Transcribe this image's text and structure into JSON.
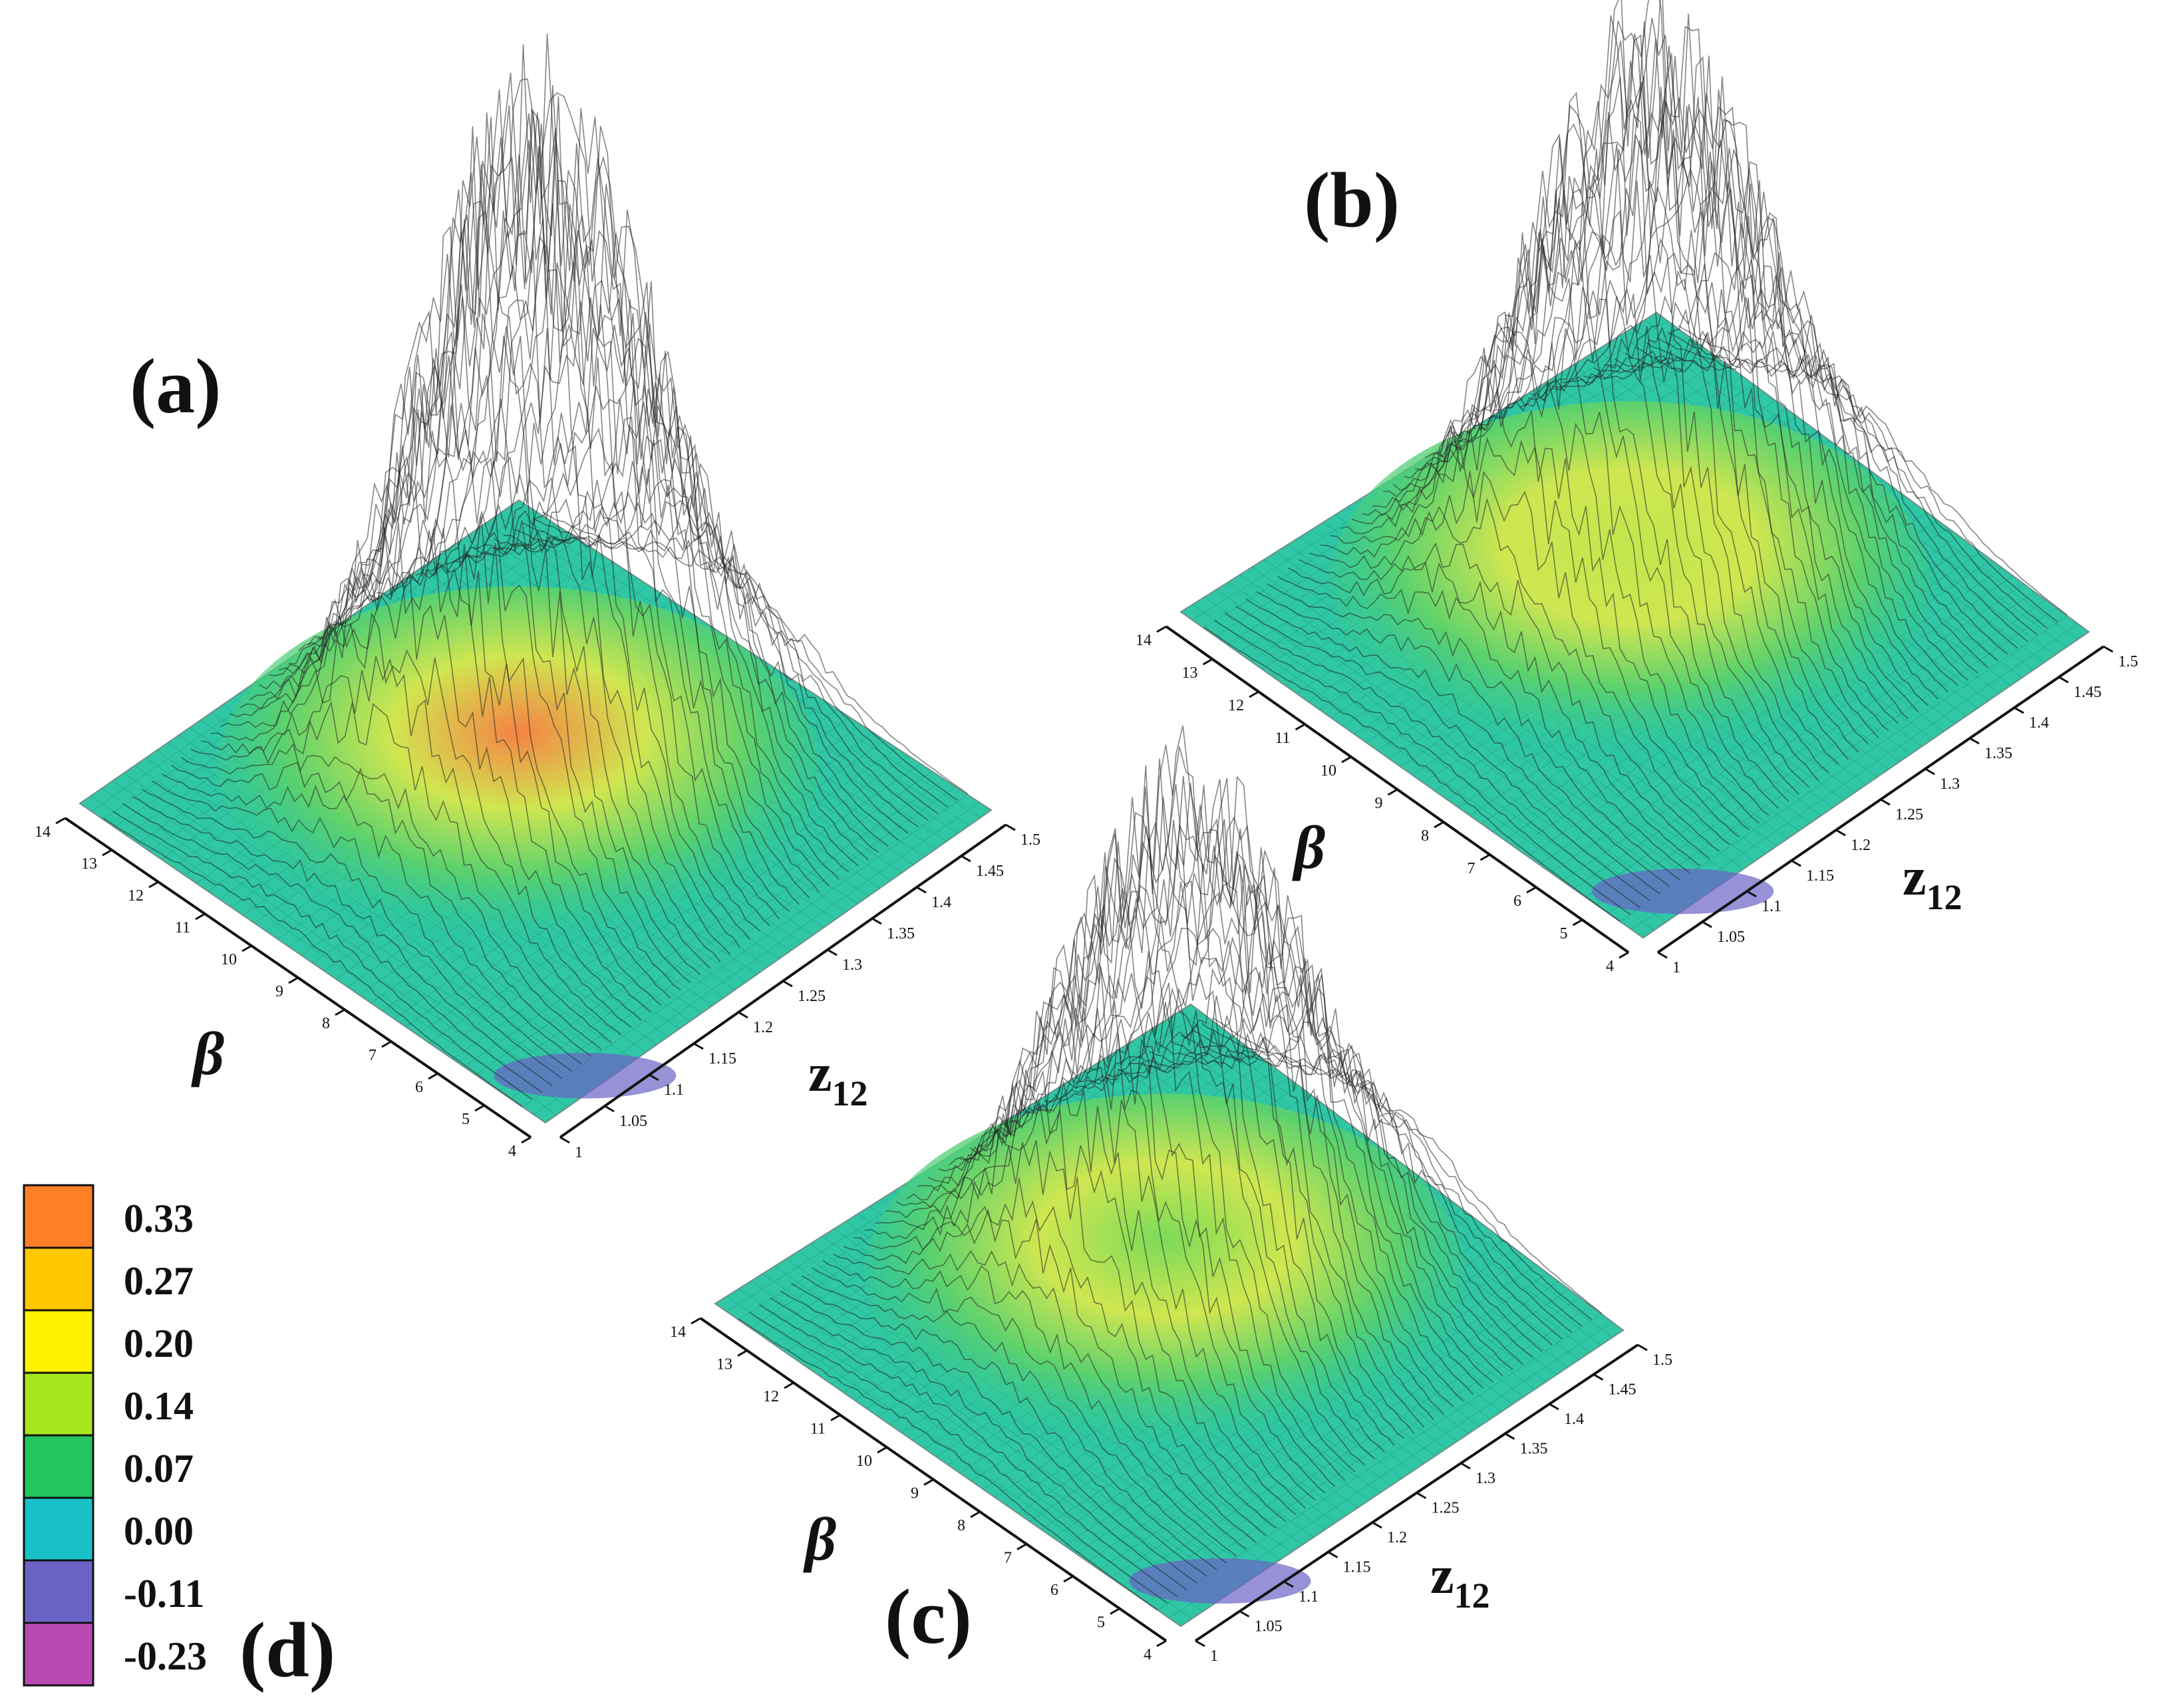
{
  "chart_data": [
    {
      "type": "surface",
      "panel_label": "(a)",
      "x_label": "β",
      "y_label": "z",
      "y_label_subscript": "12",
      "beta_ticks": [
        "14",
        "13",
        "12",
        "11",
        "10",
        "9",
        "8",
        "7",
        "6",
        "5",
        "4"
      ],
      "z12_ticks": [
        "1",
        "1.05",
        "1.1",
        "1.15",
        "1.2",
        "1.25",
        "1.3",
        "1.35",
        "1.4",
        "1.45",
        "1.5"
      ],
      "zlim": [
        -0.23,
        0.33
      ],
      "peak_value": 0.33,
      "color": "#ff7f3f"
    },
    {
      "type": "surface",
      "panel_label": "(b)",
      "x_label": "β",
      "y_label": "z",
      "y_label_subscript": "12",
      "beta_ticks": [
        "14",
        "13",
        "12",
        "11",
        "10",
        "9",
        "8",
        "7",
        "6",
        "5",
        "4"
      ],
      "z12_ticks": [
        "1",
        "1.05",
        "1.1",
        "1.15",
        "1.2",
        "1.25",
        "1.3",
        "1.35",
        "1.4",
        "1.45",
        "1.5"
      ],
      "zlim": [
        -0.23,
        0.33
      ],
      "peak_value": 0.2,
      "color": "#c9e84a"
    },
    {
      "type": "surface",
      "panel_label": "(c)",
      "x_label": "β",
      "y_label": "z",
      "y_label_subscript": "12",
      "beta_ticks": [
        "14",
        "13",
        "12",
        "11",
        "10",
        "9",
        "8",
        "7",
        "6",
        "5",
        "4"
      ],
      "z12_ticks": [
        "1",
        "1.05",
        "1.1",
        "1.15",
        "1.2",
        "1.25",
        "1.3",
        "1.35",
        "1.4",
        "1.45",
        "1.5"
      ],
      "zlim": [
        -0.23,
        0.33
      ],
      "peak_value": 0.14,
      "color": "#7fdc55"
    }
  ],
  "legend": {
    "panel_label": "(d)",
    "entries": [
      {
        "value": "0.33",
        "color": "#ff7f27"
      },
      {
        "value": "0.27",
        "color": "#ffc800"
      },
      {
        "value": "0.20",
        "color": "#fff200"
      },
      {
        "value": "0.14",
        "color": "#a8e61d"
      },
      {
        "value": "0.07",
        "color": "#22c55e"
      },
      {
        "value": "0.00",
        "color": "#19c2c8"
      },
      {
        "value": "-0.11",
        "color": "#6b63c6"
      },
      {
        "value": "-0.23",
        "color": "#b94ab5"
      }
    ]
  }
}
